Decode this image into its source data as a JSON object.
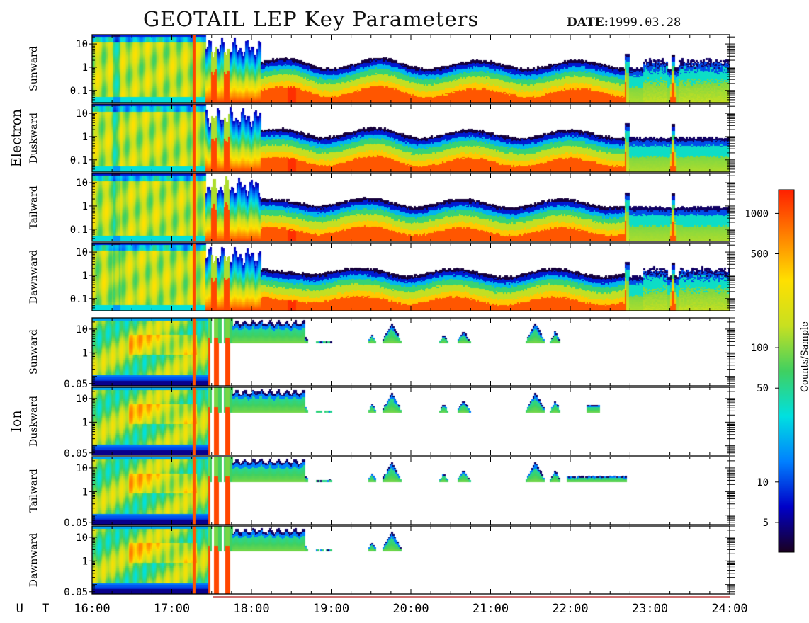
{
  "header": {
    "title": "GEOTAIL LEP Key Parameters",
    "date_label": "DATE:",
    "date_value": "1999.03.28"
  },
  "chart_data": {
    "type": "heatmap",
    "title": "GEOTAIL LEP Key Parameters",
    "date": "1999.03.28",
    "x_axis": {
      "label": "U T",
      "ticks": [
        "16:00",
        "17:00",
        "18:00",
        "19:00",
        "20:00",
        "21:00",
        "22:00",
        "23:00",
        "24:00"
      ],
      "range_hours": [
        16,
        24
      ]
    },
    "species": [
      {
        "name": "Electron",
        "log_y": true,
        "y_ticks": [
          {
            "value": 10,
            "label": "10"
          },
          {
            "value": 1,
            "label": "1"
          },
          {
            "value": 0.1,
            "label": "0.1"
          }
        ],
        "y_range": [
          0.03,
          25
        ],
        "panels": [
          {
            "label": "Sunward",
            "id": "e-sun"
          },
          {
            "label": "Duskward",
            "id": "e-dusk"
          },
          {
            "label": "Tailward",
            "id": "e-tail"
          },
          {
            "label": "Dawnward",
            "id": "e-dawn"
          }
        ]
      },
      {
        "name": "Ion",
        "log_y": true,
        "y_ticks": [
          {
            "value": 10,
            "label": "10"
          },
          {
            "value": 1,
            "label": "1"
          },
          {
            "value": 0.05,
            "label": "0.05"
          }
        ],
        "y_range": [
          0.04,
          30
        ],
        "panels": [
          {
            "label": "Sunward",
            "id": "i-sun"
          },
          {
            "label": "Duskward",
            "id": "i-dusk"
          },
          {
            "label": "Tailward",
            "id": "i-tail"
          },
          {
            "label": "Dawnward",
            "id": "i-dawn"
          }
        ]
      }
    ],
    "colorbar": {
      "label": "Counts/Sample",
      "log": true,
      "range": [
        3,
        1500
      ],
      "ticks": [
        {
          "value": 1000,
          "label": "1000"
        },
        {
          "value": 500,
          "label": "500"
        },
        {
          "value": 100,
          "label": "100"
        },
        {
          "value": 50,
          "label": "50"
        },
        {
          "value": 10,
          "label": "10"
        },
        {
          "value": 5,
          "label": "5"
        }
      ]
    },
    "colors": {
      "scale": [
        "#1a0020",
        "#0000c8",
        "#0080ff",
        "#00e0e0",
        "#40d060",
        "#c8e020",
        "#ffe000",
        "#ff8000",
        "#ff2000"
      ]
    }
  }
}
